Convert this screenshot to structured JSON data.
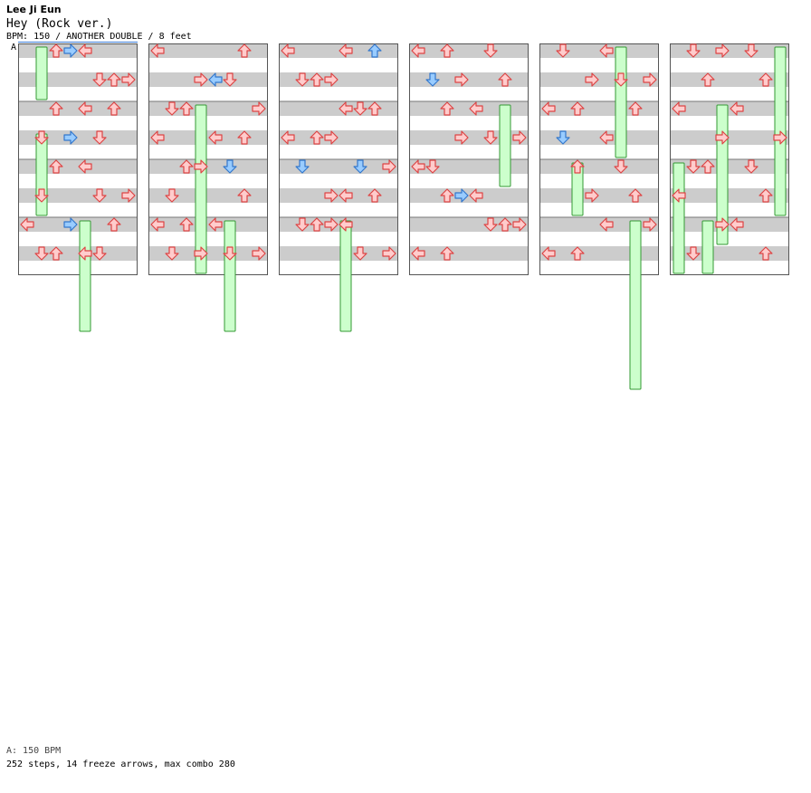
{
  "header": {
    "artist": "Lee Ji Eun",
    "title": "Hey (Rock ver.)",
    "info": "BPM: 150 / ANOTHER DOUBLE / 8 feet",
    "bpm_marker": "A"
  },
  "footer": {
    "bpm_legend": "A: 150 BPM",
    "stats": "252 steps, 14 freeze arrows, max combo 280"
  },
  "colors": {
    "stripe": "#cccccc",
    "border": "#555555",
    "red_fill": "#ffcccc",
    "red_stroke": "#dd4444",
    "blue_fill": "#99ccff",
    "blue_stroke": "#3377cc",
    "freeze_fill": "#ccffcc",
    "freeze_stroke": "#339933",
    "bpm_line": "#3a7bd5"
  },
  "chart_data": {
    "type": "step-chart",
    "mode": "ANOTHER DOUBLE",
    "bpm": 150,
    "rows_per_column": 48,
    "columns": 6,
    "lanes": 8,
    "lane_directions": [
      "left",
      "down",
      "up",
      "right",
      "left",
      "down",
      "up",
      "right"
    ],
    "notes": [
      [
        0,
        2,
        false
      ],
      [
        0,
        3,
        true
      ],
      [
        0,
        4,
        false
      ],
      [
        1,
        5,
        false
      ],
      [
        1,
        6,
        false
      ],
      [
        1,
        7,
        false
      ],
      [
        2,
        4,
        false
      ],
      [
        2,
        2,
        false
      ],
      [
        2,
        6,
        false
      ],
      [
        3,
        1,
        false
      ],
      [
        3,
        5,
        false
      ],
      [
        3,
        3,
        true
      ],
      [
        4,
        2,
        false
      ],
      [
        4,
        4,
        false
      ],
      [
        5,
        1,
        false
      ],
      [
        5,
        7,
        false
      ],
      [
        5,
        5,
        false
      ],
      [
        6,
        0,
        false
      ],
      [
        6,
        3,
        true
      ],
      [
        6,
        6,
        false
      ],
      [
        7,
        4,
        false
      ],
      [
        7,
        1,
        false
      ],
      [
        7,
        2,
        false
      ],
      [
        7,
        5,
        false
      ],
      [
        8,
        6,
        false
      ],
      [
        8,
        0,
        false
      ],
      [
        9,
        3,
        false
      ],
      [
        9,
        5,
        false
      ],
      [
        9,
        4,
        true
      ],
      [
        10,
        2,
        false
      ],
      [
        10,
        7,
        false
      ],
      [
        10,
        1,
        false
      ],
      [
        11,
        0,
        false
      ],
      [
        11,
        4,
        false
      ],
      [
        11,
        6,
        false
      ],
      [
        12,
        3,
        false
      ],
      [
        12,
        5,
        true
      ],
      [
        12,
        2,
        false
      ],
      [
        13,
        1,
        false
      ],
      [
        13,
        6,
        false
      ],
      [
        14,
        2,
        false
      ],
      [
        14,
        4,
        false
      ],
      [
        14,
        0,
        false
      ],
      [
        15,
        5,
        false
      ],
      [
        15,
        7,
        false
      ],
      [
        15,
        1,
        false
      ],
      [
        15,
        3,
        false
      ],
      [
        16,
        0,
        false
      ],
      [
        16,
        4,
        false
      ],
      [
        16,
        6,
        true
      ],
      [
        17,
        3,
        false
      ],
      [
        17,
        1,
        false
      ],
      [
        17,
        2,
        false
      ],
      [
        18,
        6,
        false
      ],
      [
        18,
        5,
        false
      ],
      [
        18,
        4,
        false
      ],
      [
        19,
        0,
        false
      ],
      [
        19,
        2,
        false
      ],
      [
        19,
        3,
        false
      ],
      [
        20,
        5,
        true
      ],
      [
        20,
        1,
        true
      ],
      [
        20,
        7,
        false
      ],
      [
        21,
        4,
        false
      ],
      [
        21,
        6,
        false
      ],
      [
        21,
        3,
        false
      ],
      [
        22,
        2,
        false
      ],
      [
        22,
        4,
        false
      ],
      [
        22,
        1,
        false
      ],
      [
        22,
        3,
        false
      ],
      [
        23,
        5,
        false
      ],
      [
        23,
        7,
        false
      ],
      [
        24,
        0,
        false
      ],
      [
        24,
        5,
        false
      ],
      [
        24,
        2,
        false
      ],
      [
        25,
        3,
        false
      ],
      [
        25,
        1,
        true
      ],
      [
        25,
        6,
        false
      ],
      [
        26,
        4,
        false
      ],
      [
        26,
        2,
        false
      ],
      [
        27,
        5,
        false
      ],
      [
        27,
        7,
        false
      ],
      [
        27,
        3,
        false
      ],
      [
        28,
        1,
        false
      ],
      [
        28,
        0,
        false
      ],
      [
        29,
        3,
        true
      ],
      [
        29,
        4,
        false
      ],
      [
        29,
        2,
        false
      ],
      [
        30,
        6,
        false
      ],
      [
        30,
        5,
        false
      ],
      [
        30,
        7,
        false
      ],
      [
        31,
        2,
        false
      ],
      [
        31,
        0,
        false
      ],
      [
        32,
        1,
        false
      ],
      [
        32,
        4,
        false
      ],
      [
        33,
        3,
        false
      ],
      [
        33,
        7,
        false
      ],
      [
        33,
        5,
        false
      ],
      [
        34,
        0,
        false
      ],
      [
        34,
        6,
        false
      ],
      [
        34,
        2,
        false
      ],
      [
        35,
        4,
        false
      ],
      [
        35,
        1,
        true
      ],
      [
        36,
        2,
        false
      ],
      [
        36,
        5,
        false
      ],
      [
        37,
        3,
        false
      ],
      [
        37,
        6,
        false
      ],
      [
        38,
        7,
        false
      ],
      [
        38,
        4,
        false
      ],
      [
        39,
        0,
        false
      ],
      [
        39,
        2,
        false
      ],
      [
        40,
        5,
        false
      ],
      [
        40,
        1,
        false
      ],
      [
        40,
        3,
        false
      ],
      [
        41,
        6,
        false
      ],
      [
        41,
        2,
        false
      ],
      [
        42,
        4,
        false
      ],
      [
        42,
        0,
        false
      ],
      [
        43,
        7,
        false
      ],
      [
        43,
        3,
        false
      ],
      [
        44,
        1,
        false
      ],
      [
        44,
        5,
        false
      ],
      [
        44,
        2,
        false
      ],
      [
        45,
        6,
        false
      ],
      [
        45,
        0,
        false
      ],
      [
        46,
        4,
        false
      ],
      [
        46,
        3,
        false
      ],
      [
        47,
        1,
        false
      ],
      [
        47,
        6,
        false
      ]
    ],
    "freezes": [
      [
        1,
        0,
        2
      ],
      [
        1,
        3,
        3
      ],
      [
        4,
        6,
        4
      ],
      [
        3,
        10,
        6
      ],
      [
        5,
        14,
        4
      ],
      [
        4,
        22,
        4
      ],
      [
        6,
        26,
        3
      ],
      [
        5,
        32,
        4
      ],
      [
        2,
        36,
        2
      ],
      [
        0,
        44,
        4
      ],
      [
        3,
        42,
        5
      ],
      [
        7,
        40,
        6
      ],
      [
        6,
        38,
        6
      ],
      [
        2,
        46,
        2
      ]
    ]
  }
}
